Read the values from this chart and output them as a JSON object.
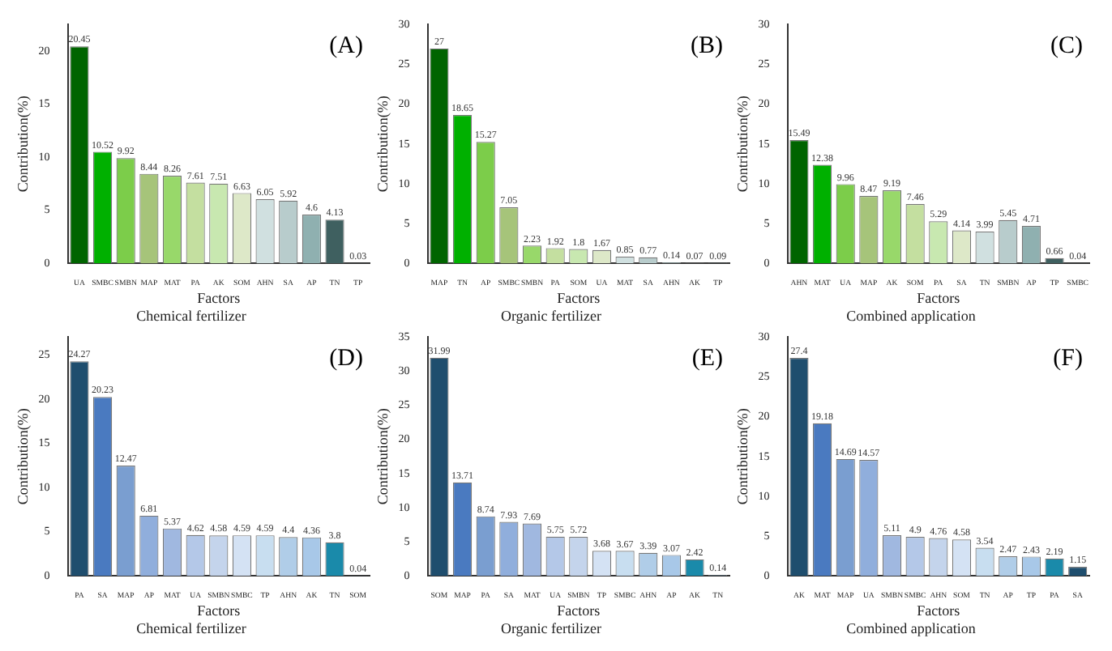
{
  "chart_data": [
    {
      "type": "bar",
      "title": "(A)",
      "subtitle": "Chemical fertilizer",
      "xlabel": "Factors",
      "ylabel": "Contribution(%)",
      "data_labels": true,
      "ylim": [
        0,
        22.5
      ],
      "yticks": [
        0,
        5,
        10,
        15,
        20
      ],
      "categories": [
        "UA",
        "SMBC",
        "SMBN",
        "MAP",
        "MAT",
        "PA",
        "AK",
        "SOM",
        "AHN",
        "SA",
        "AP",
        "TN",
        "TP"
      ],
      "values": [
        20.45,
        10.52,
        9.92,
        8.44,
        8.26,
        7.61,
        7.51,
        6.63,
        6.05,
        5.92,
        4.6,
        4.13,
        0.03
      ],
      "colors": [
        "#006400",
        "#00b000",
        "#7ccd4a",
        "#a6c47a",
        "#98d86a",
        "#c4dfa0",
        "#c8e8b0",
        "#dde8c8",
        "#d0e0e0",
        "#b8cccc",
        "#8fb0b0",
        "#3f6060",
        "#2f4f4f"
      ]
    },
    {
      "type": "bar",
      "title": "(B)",
      "subtitle": "Organic fertilizer",
      "xlabel": "Factors",
      "ylabel": "Contribution(%)",
      "data_labels": true,
      "ylim": [
        0,
        30
      ],
      "yticks": [
        0,
        5,
        10,
        15,
        20,
        25,
        30
      ],
      "categories": [
        "MAP",
        "TN",
        "AP",
        "SMBC",
        "SMBN",
        "PA",
        "SOM",
        "UA",
        "MAT",
        "SA",
        "AHN",
        "AK",
        "TP"
      ],
      "values": [
        27,
        18.65,
        15.27,
        7.05,
        2.23,
        1.92,
        1.8,
        1.67,
        0.85,
        0.77,
        0.14,
        0.07,
        0.09
      ],
      "colors": [
        "#006400",
        "#00b000",
        "#7ccd4a",
        "#a6c47a",
        "#98d86a",
        "#c4dfa0",
        "#c8e8b0",
        "#dde8c8",
        "#d0e0e0",
        "#b8cccc",
        "#8fb0b0",
        "#3f6060",
        "#2f4f4f"
      ]
    },
    {
      "type": "bar",
      "title": "(C)",
      "subtitle": "Combined application",
      "xlabel": "Factors",
      "ylabel": "Contribution(%)",
      "data_labels": true,
      "ylim": [
        0,
        30
      ],
      "yticks": [
        0,
        5,
        10,
        15,
        20,
        25,
        30
      ],
      "categories": [
        "AHN",
        "MAT",
        "UA",
        "MAP",
        "AK",
        "SOM",
        "PA",
        "SA",
        "TN",
        "SMBN",
        "AP",
        "TP",
        "SMBC"
      ],
      "values": [
        15.49,
        12.38,
        9.96,
        8.47,
        9.19,
        7.46,
        5.29,
        4.14,
        3.99,
        5.45,
        4.71,
        0.66,
        0.04
      ],
      "colors": [
        "#006400",
        "#00b000",
        "#7ccd4a",
        "#a6c47a",
        "#98d86a",
        "#c4dfa0",
        "#c8e8b0",
        "#dde8c8",
        "#d0e0e0",
        "#b8cccc",
        "#8fb0b0",
        "#3f6060",
        "#2f4f4f"
      ]
    },
    {
      "type": "bar",
      "title": "(D)",
      "subtitle": "Chemical fertilizer",
      "xlabel": "Factors",
      "ylabel": "Contribution(%)",
      "data_labels": true,
      "ylim": [
        0,
        27
      ],
      "yticks": [
        0,
        5,
        10,
        15,
        20,
        25
      ],
      "categories": [
        "PA",
        "SA",
        "MAP",
        "AP",
        "MAT",
        "UA",
        "SMBN",
        "SMBC",
        "TP",
        "AHN",
        "AK",
        "TN",
        "SOM"
      ],
      "values": [
        24.27,
        20.23,
        12.47,
        6.81,
        5.37,
        4.62,
        4.58,
        4.59,
        4.59,
        4.4,
        4.36,
        3.8,
        0.04
      ],
      "colors": [
        "#1f4e6e",
        "#4a7ac0",
        "#7a9ed0",
        "#90aedc",
        "#a0b8e0",
        "#b4c8e8",
        "#c4d4ec",
        "#d4e2f4",
        "#c8def0",
        "#b0cde8",
        "#a8c8e8",
        "#1a8aaa",
        "#1f4e6e"
      ]
    },
    {
      "type": "bar",
      "title": "(E)",
      "subtitle": "Organic fertilizer",
      "xlabel": "Factors",
      "ylabel": "Contribution(%)",
      "data_labels": true,
      "ylim": [
        0,
        35
      ],
      "yticks": [
        0,
        5,
        10,
        15,
        20,
        25,
        30,
        35
      ],
      "categories": [
        "SOM",
        "MAP",
        "PA",
        "SA",
        "MAT",
        "UA",
        "SMBN",
        "TP",
        "SMBC",
        "AHN",
        "AP",
        "AK",
        "TN"
      ],
      "values": [
        31.99,
        13.71,
        8.74,
        7.93,
        7.69,
        5.75,
        5.72,
        3.68,
        3.67,
        3.39,
        3.07,
        2.42,
        0.14
      ],
      "colors": [
        "#1f4e6e",
        "#4a7ac0",
        "#7a9ed0",
        "#90aedc",
        "#a0b8e0",
        "#b4c8e8",
        "#c4d4ec",
        "#d4e2f4",
        "#c8def0",
        "#b0cde8",
        "#a8c8e8",
        "#1a8aaa",
        "#1f4e6e"
      ]
    },
    {
      "type": "bar",
      "title": "(F)",
      "subtitle": "Combined application",
      "xlabel": "Factors",
      "ylabel": "Contribution(%)",
      "data_labels": true,
      "ylim": [
        0,
        30
      ],
      "yticks": [
        0,
        5,
        10,
        15,
        20,
        25,
        30
      ],
      "categories": [
        "AK",
        "MAT",
        "MAP",
        "UA",
        "SMBN",
        "SMBC",
        "AHN",
        "SOM",
        "TN",
        "AP",
        "TP",
        "PA",
        "SA"
      ],
      "values": [
        27.4,
        19.18,
        14.69,
        14.57,
        5.11,
        4.9,
        4.76,
        4.58,
        3.54,
        2.47,
        2.43,
        2.19,
        1.15
      ],
      "colors": [
        "#1f4e6e",
        "#4a7ac0",
        "#7a9ed0",
        "#90aedc",
        "#a0b8e0",
        "#b4c8e8",
        "#c4d4ec",
        "#d4e2f4",
        "#c8def0",
        "#b0cde8",
        "#a8c8e8",
        "#1a8aaa",
        "#1f4e6e"
      ]
    }
  ]
}
